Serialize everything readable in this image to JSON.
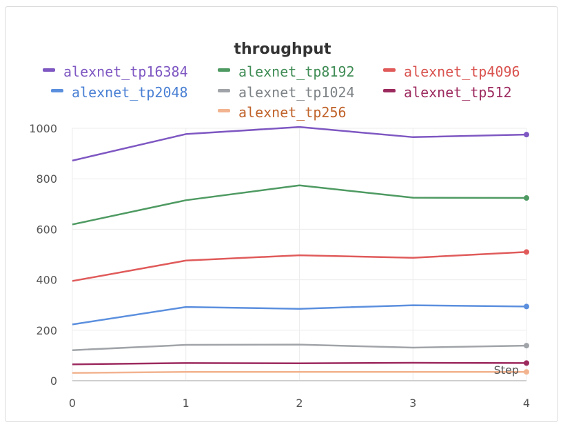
{
  "chart_data": {
    "type": "line",
    "title": "throughput",
    "xlabel": "Step",
    "ylabel": "",
    "x": [
      0,
      1,
      2,
      3,
      4
    ],
    "xlim": [
      0,
      4
    ],
    "ylim": [
      0,
      1000
    ],
    "yticks": [
      0,
      200,
      400,
      600,
      800,
      1000
    ],
    "xticks": [
      0,
      1,
      2,
      3,
      4
    ],
    "grid": true,
    "legend_position": "top",
    "series": [
      {
        "name": "alexnet_tp16384",
        "color": "#7e57c2",
        "text_color": "#7e57c2",
        "values": [
          872,
          977,
          1005,
          965,
          975
        ]
      },
      {
        "name": "alexnet_tp8192",
        "color": "#4e9a62",
        "text_color": "#3f8c55",
        "values": [
          619,
          715,
          774,
          725,
          724
        ]
      },
      {
        "name": "alexnet_tp4096",
        "color": "#e05a5a",
        "text_color": "#d9534f",
        "values": [
          395,
          476,
          497,
          487,
          510
        ]
      },
      {
        "name": "alexnet_tp2048",
        "color": "#5b8fde",
        "text_color": "#4a80d4",
        "values": [
          223,
          292,
          285,
          299,
          294
        ]
      },
      {
        "name": "alexnet_tp1024",
        "color": "#a0a4a8",
        "text_color": "#7d8286",
        "values": [
          121,
          142,
          143,
          131,
          139
        ]
      },
      {
        "name": "alexnet_tp512",
        "color": "#9c2a5e",
        "text_color": "#9c2a5e",
        "values": [
          65,
          70,
          69,
          71,
          70
        ]
      },
      {
        "name": "alexnet_tp256",
        "color": "#f2b38f",
        "text_color": "#c0622a",
        "values": [
          31,
          35,
          35,
          35,
          35
        ]
      }
    ]
  }
}
